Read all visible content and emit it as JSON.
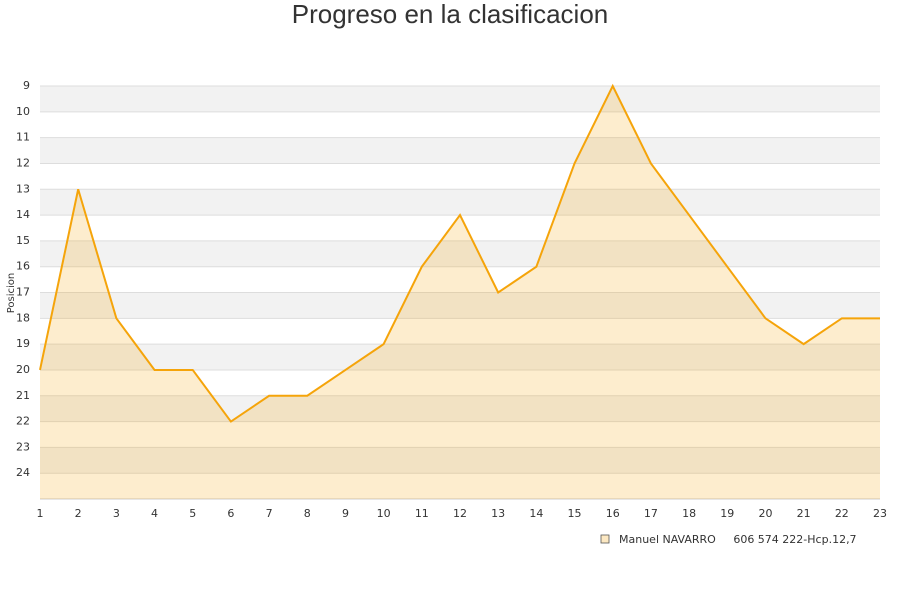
{
  "chart_data": {
    "type": "area",
    "title": "Progreso en la clasificacion",
    "y_label": "Posicion",
    "x": [
      1,
      2,
      3,
      4,
      5,
      6,
      7,
      8,
      9,
      10,
      11,
      12,
      13,
      14,
      15,
      16,
      17,
      18,
      19,
      20,
      21,
      22,
      23
    ],
    "series": [
      {
        "name": "Manuel NAVARRO     606 574 222-Hcp.12,7",
        "color": "#f5a40a",
        "values": [
          20,
          13,
          18,
          20,
          20,
          22,
          21,
          21,
          20,
          19,
          16,
          14,
          17,
          16,
          12,
          9,
          12,
          14,
          16,
          18,
          19,
          18,
          18
        ]
      }
    ],
    "xlim": [
      1,
      23
    ],
    "xticks": [
      1,
      2,
      3,
      4,
      5,
      6,
      7,
      8,
      9,
      10,
      11,
      12,
      13,
      14,
      15,
      16,
      17,
      18,
      19,
      20,
      21,
      22,
      23
    ],
    "ylim": [
      25,
      9
    ],
    "yticks": [
      9,
      10,
      11,
      12,
      13,
      14,
      15,
      16,
      17,
      18,
      19,
      20,
      21,
      22,
      23,
      24
    ],
    "grid": true
  }
}
